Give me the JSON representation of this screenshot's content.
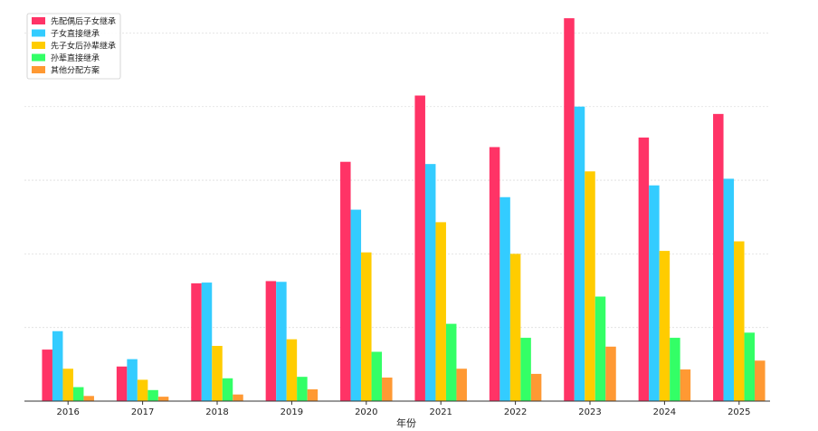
{
  "chart_data": {
    "type": "bar",
    "title": "",
    "xlabel": "年份",
    "ylabel": "",
    "categories": [
      "2016",
      "2017",
      "2018",
      "2019",
      "2020",
      "2021",
      "2022",
      "2023",
      "2024",
      "2025"
    ],
    "series": [
      {
        "name": "先配偶后子女继承",
        "color": "#ff3366",
        "values": [
          70,
          47,
          160,
          163,
          325,
          415,
          345,
          520,
          358,
          390
        ]
      },
      {
        "name": "子女直接继承",
        "color": "#33ccff",
        "values": [
          95,
          57,
          161,
          162,
          260,
          322,
          277,
          400,
          293,
          302
        ]
      },
      {
        "name": "先子女后孙辈继承",
        "color": "#ffcc00",
        "values": [
          44,
          29,
          75,
          84,
          202,
          243,
          200,
          312,
          204,
          217
        ]
      },
      {
        "name": "孙辈直接继承",
        "color": "#33ff66",
        "values": [
          19,
          15,
          31,
          33,
          67,
          105,
          86,
          142,
          86,
          93
        ]
      },
      {
        "name": "其他分配方案",
        "color": "#ff9933",
        "values": [
          7,
          6,
          9,
          16,
          32,
          44,
          37,
          74,
          43,
          55
        ]
      }
    ],
    "ylim": [
      0,
      530
    ],
    "yticks": [
      0,
      100,
      200,
      300,
      400,
      500
    ],
    "show_yaxis": false,
    "grid": "horizontal-dashed",
    "legend_position": "top-left"
  }
}
